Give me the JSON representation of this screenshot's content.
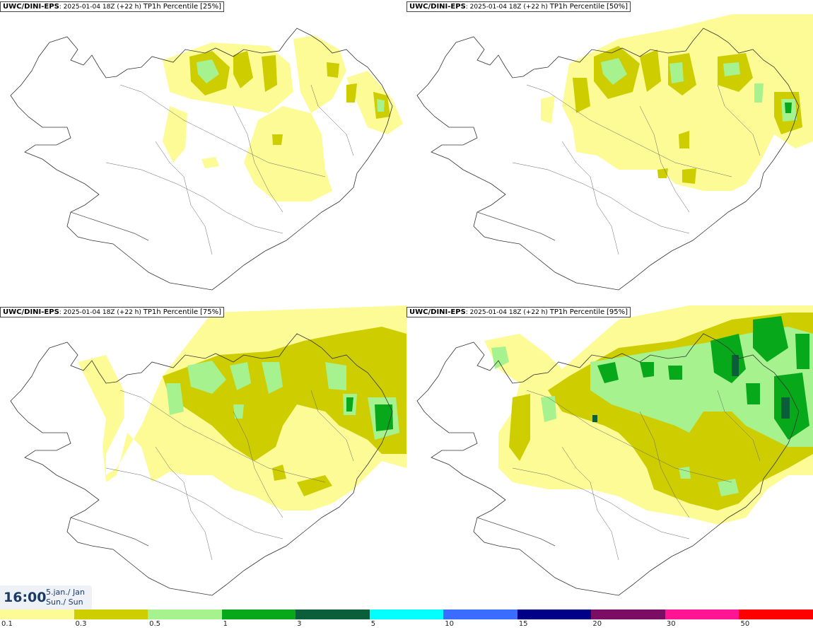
{
  "model": "UWC/DINI-EPS",
  "run": "2025-01-04 18Z (+22 h)",
  "variable": "TP1h Percentile",
  "panels": [
    {
      "percentile": "[25%]"
    },
    {
      "percentile": "[50%]"
    },
    {
      "percentile": "[75%]"
    },
    {
      "percentile": "[95%]"
    }
  ],
  "time": {
    "clock": "16:00",
    "date_line1": "5.jan./ Jan",
    "date_line2": "Sun./ Sun"
  },
  "legend": {
    "colors": [
      "#fdfb96",
      "#cdcd00",
      "#a6f28f",
      "#07a819",
      "#0a5f3a",
      "#02fffe",
      "#3a6cff",
      "#000087",
      "#7b0d65",
      "#ff1493",
      "#ff0000"
    ],
    "labels": [
      "0.1",
      "0.3",
      "0.5",
      "1",
      "3",
      "5",
      "10",
      "15",
      "20",
      "30",
      "50"
    ]
  }
}
